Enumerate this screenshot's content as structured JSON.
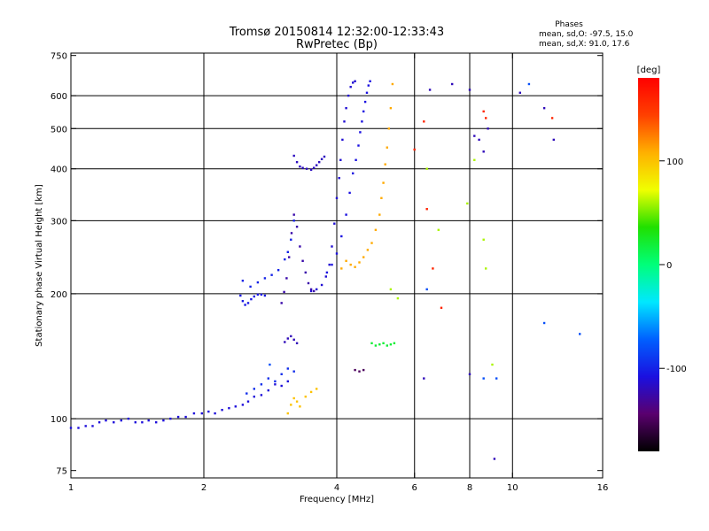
{
  "chart_data": {
    "type": "scatter",
    "title": "Tromsø 20150814 12:32:00-12:33:43",
    "subtitle": "RwPretec (Bp)",
    "info": {
      "heading": "Phases",
      "line1": "mean, sd,O: -97.5, 15.0",
      "line2": "mean, sd,X:  91.0, 17.6"
    },
    "xlabel": "Frequency [MHz]",
    "ylabel": "Stationary phase Virtual Height [km]",
    "x_scale": "log",
    "y_scale": "log",
    "xlim": [
      1,
      16
    ],
    "ylim": [
      72,
      760
    ],
    "x_ticks": [
      {
        "value": 1,
        "label": "1"
      },
      {
        "value": 2,
        "label": "2"
      },
      {
        "value": 4,
        "label": "4"
      },
      {
        "value": 6,
        "label": "6"
      },
      {
        "value": 8,
        "label": "8"
      },
      {
        "value": 10,
        "label": "10"
      },
      {
        "value": 16,
        "label": "16"
      }
    ],
    "x_grid": [
      2,
      4,
      6,
      8,
      10
    ],
    "y_ticks": [
      {
        "value": 75,
        "label": "75"
      },
      {
        "value": 100,
        "label": "100"
      },
      {
        "value": 200,
        "label": "200"
      },
      {
        "value": 300,
        "label": "300"
      },
      {
        "value": 400,
        "label": "400"
      },
      {
        "value": 500,
        "label": "500"
      },
      {
        "value": 600,
        "label": "600"
      },
      {
        "value": 750,
        "label": "750"
      }
    ],
    "y_grid": [
      100,
      200,
      300,
      400,
      500,
      600
    ],
    "grid": true,
    "colorbar": {
      "label": "[deg]",
      "range": [
        -180,
        180
      ],
      "ticks": [
        {
          "value": 100,
          "label": "100"
        },
        {
          "value": 0,
          "label": "0"
        },
        {
          "value": -100,
          "label": "-100"
        }
      ],
      "colors": [
        "#000000",
        "#5a006e",
        "#1a10e0",
        "#0060ff",
        "#00e8ff",
        "#00ff7a",
        "#20e000",
        "#f0ff00",
        "#ffb000",
        "#ff4000",
        "#ff0000"
      ]
    },
    "traces": [
      {
        "name": "",
        "phase": -110,
        "x": [
          1.0,
          1.04,
          1.08,
          1.12,
          1.16,
          1.2,
          1.25,
          1.3,
          1.35,
          1.4,
          1.45,
          1.5,
          1.56,
          1.62,
          1.68,
          1.75,
          1.82,
          1.9,
          1.98,
          2.05,
          2.12,
          2.2,
          2.28,
          2.36,
          2.45,
          2.52,
          2.6,
          2.7,
          2.8,
          2.9,
          3.0,
          3.1
        ],
        "y": [
          95,
          95,
          96,
          96,
          98,
          99,
          98,
          99,
          100,
          98,
          98,
          99,
          98,
          99,
          100,
          101,
          101,
          103,
          103,
          104,
          103,
          105,
          106,
          107,
          108,
          110,
          113,
          114,
          117,
          121,
          120,
          123
        ]
      },
      {
        "name": "",
        "phase": -105,
        "x": [
          2.42,
          2.45,
          2.48,
          2.52,
          2.56,
          2.6,
          2.65,
          2.7,
          2.75
        ],
        "y": [
          198,
          192,
          188,
          190,
          194,
          197,
          199,
          199,
          198
        ]
      },
      {
        "name": "",
        "phase": -100,
        "x": [
          2.45,
          2.55,
          2.65,
          2.75,
          2.85,
          2.95,
          3.05,
          3.1,
          3.15,
          3.2
        ],
        "y": [
          215,
          208,
          213,
          218,
          222,
          228,
          242,
          252,
          270,
          300
        ]
      },
      {
        "name": "",
        "phase": -125,
        "x": [
          3.0,
          3.04,
          3.08,
          3.12,
          3.16,
          3.2,
          3.25,
          3.3,
          3.35,
          3.4,
          3.45,
          3.5,
          3.55
        ],
        "y": [
          190,
          202,
          218,
          245,
          280,
          310,
          290,
          260,
          240,
          225,
          212,
          205,
          203
        ]
      },
      {
        "name": "",
        "phase": -118,
        "x": [
          3.2,
          3.25,
          3.3,
          3.35,
          3.42,
          3.5,
          3.55,
          3.6,
          3.65,
          3.7,
          3.75
        ],
        "y": [
          430,
          415,
          405,
          402,
          400,
          398,
          402,
          408,
          415,
          422,
          428
        ]
      },
      {
        "name": "",
        "phase": -112,
        "x": [
          3.5,
          3.6,
          3.7,
          3.78,
          3.85,
          3.9,
          3.95,
          4.0,
          4.05,
          4.08,
          4.12,
          4.16,
          4.2,
          4.25,
          4.3,
          4.35,
          4.4
        ],
        "y": [
          203,
          205,
          210,
          220,
          235,
          260,
          295,
          340,
          380,
          420,
          470,
          520,
          560,
          600,
          630,
          645,
          650
        ]
      },
      {
        "name": "",
        "phase": -108,
        "x": [
          3.8,
          3.9,
          4.0,
          4.1,
          4.2,
          4.28,
          4.35,
          4.42,
          4.48,
          4.52,
          4.56,
          4.6,
          4.64,
          4.68,
          4.72,
          4.76
        ],
        "y": [
          225,
          235,
          250,
          275,
          310,
          350,
          390,
          420,
          455,
          490,
          520,
          550,
          580,
          610,
          635,
          650
        ]
      },
      {
        "name": "",
        "phase": 110,
        "x": [
          4.1,
          4.2,
          4.3,
          4.4,
          4.5,
          4.6,
          4.7,
          4.8,
          4.9,
          5.0,
          5.05,
          5.1,
          5.15,
          5.2,
          5.25,
          5.3,
          5.35
        ],
        "y": [
          230,
          240,
          235,
          232,
          238,
          245,
          255,
          265,
          285,
          310,
          340,
          370,
          410,
          450,
          500,
          560,
          640
        ]
      },
      {
        "name": "",
        "phase": 100,
        "x": [
          3.1,
          3.15,
          3.2,
          3.25,
          3.3,
          3.4,
          3.5,
          3.6
        ],
        "y": [
          103,
          108,
          112,
          110,
          107,
          113,
          116,
          118
        ]
      },
      {
        "name": "",
        "phase": 20,
        "x": [
          4.8,
          4.9,
          5.0,
          5.1,
          5.2,
          5.3,
          5.4
        ],
        "y": [
          152,
          150,
          151,
          152,
          150,
          151,
          152
        ]
      },
      {
        "name": "",
        "phase": -150,
        "x": [
          4.4,
          4.5,
          4.6
        ],
        "y": [
          131,
          130,
          131
        ]
      },
      {
        "name": "",
        "phase": -95,
        "x": [
          2.5,
          2.6,
          2.7,
          2.8,
          2.9,
          3.0,
          3.1,
          3.2
        ],
        "y": [
          115,
          118,
          121,
          125,
          123,
          128,
          132,
          130
        ]
      },
      {
        "name": "",
        "phase": -120,
        "x": [
          3.05,
          3.1,
          3.15,
          3.2,
          3.25
        ],
        "y": [
          153,
          156,
          158,
          155,
          152
        ]
      },
      {
        "name": "",
        "phase": 60,
        "x": [
          5.3,
          5.5,
          6.4,
          6.8,
          7.9,
          8.2,
          8.6,
          8.7,
          9.0
        ],
        "y": [
          205,
          195,
          400,
          285,
          330,
          420,
          270,
          230,
          135
        ]
      },
      {
        "name": "",
        "phase": 160,
        "x": [
          6.0,
          6.3,
          6.4,
          6.6,
          8.6,
          8.7,
          12.3,
          6.9
        ],
        "y": [
          445,
          520,
          320,
          230,
          550,
          530,
          530,
          185
        ]
      },
      {
        "name": "",
        "phase": -120,
        "x": [
          6.5,
          7.3,
          8.0,
          8.2,
          8.4,
          8.6,
          8.8,
          9.1,
          10.4,
          11.8,
          12.4,
          6.3,
          8.0
        ],
        "y": [
          620,
          640,
          620,
          480,
          470,
          440,
          500,
          80,
          610,
          560,
          470,
          125,
          128
        ]
      },
      {
        "name": "",
        "phase": -80,
        "x": [
          10.9,
          11.8,
          14.2,
          8.6,
          9.2,
          6.4,
          2.82
        ],
        "y": [
          640,
          170,
          160,
          125,
          125,
          205,
          135
        ]
      }
    ]
  }
}
